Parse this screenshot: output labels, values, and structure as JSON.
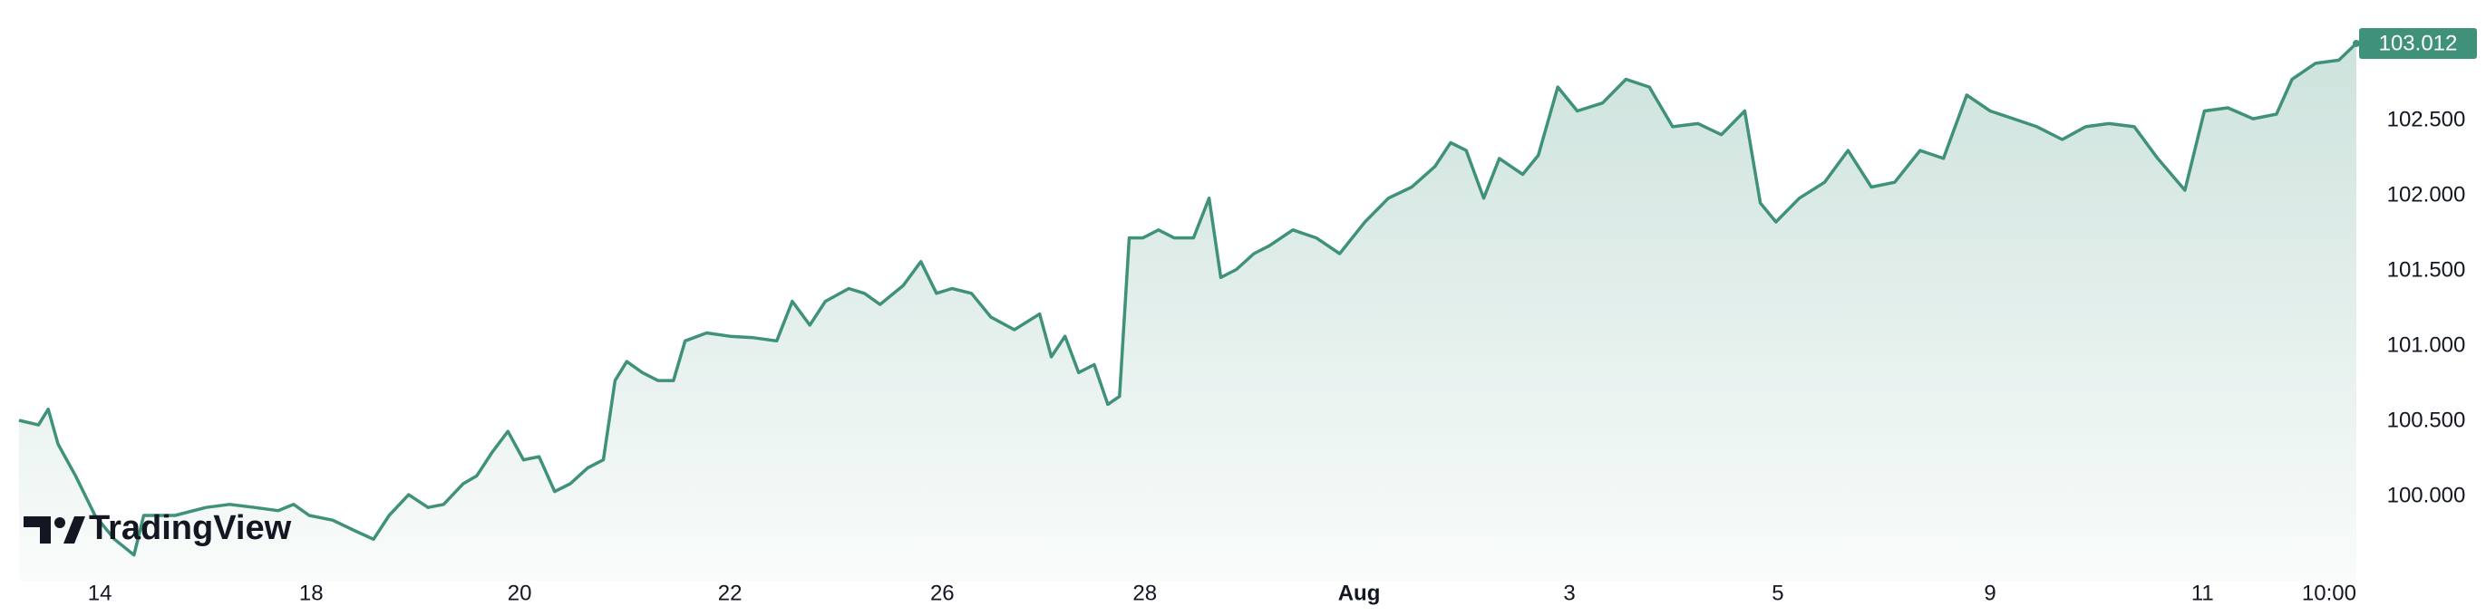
{
  "chart_data": {
    "type": "area",
    "brand": "TradingView",
    "color": "#3f917a",
    "x": [
      0.0,
      1.0,
      1.5,
      2.0,
      2.9,
      3.9,
      4.9,
      5.9,
      6.4,
      8.0,
      9.6,
      10.8,
      12.1,
      13.3,
      14.1,
      14.9,
      16.1,
      17.3,
      18.2,
      19.0,
      20.0,
      21.0,
      21.8,
      22.8,
      23.5,
      24.3,
      25.1,
      25.9,
      26.7,
      27.5,
      28.3,
      29.2,
      30.0,
      30.6,
      31.2,
      32.0,
      32.8,
      33.6,
      34.2,
      35.3,
      36.5,
      37.7,
      38.9,
      39.7,
      40.6,
      41.4,
      42.6,
      43.4,
      44.2,
      45.4,
      46.3,
      47.1,
      47.9,
      48.9,
      49.9,
      51.1,
      52.4,
      53.0,
      53.7,
      54.4,
      55.2,
      55.9,
      56.5,
      57.0,
      57.7,
      58.5,
      59.3,
      60.3,
      61.1,
      61.7,
      62.5,
      63.4,
      64.2,
      65.4,
      66.6,
      67.8,
      69.1,
      70.3,
      71.5,
      72.7,
      73.5,
      74.3,
      75.2,
      76.0,
      77.2,
      78.0,
      79.0,
      80.0,
      81.3,
      82.5,
      83.7,
      84.9,
      86.2,
      87.4,
      88.6,
      89.4,
      90.2,
      91.4,
      92.7,
      93.9,
      95.1,
      96.3,
      97.6,
      98.8,
      100.0,
      101.2,
      102.4,
      103.6,
      104.9,
      106.1,
      107.3,
      108.6,
      109.8,
      111.2,
      112.2,
      113.4,
      114.7,
      115.9,
      116.7,
      117.9,
      119.1,
      120.0
    ],
    "values": [
      100.506,
      100.475,
      100.58,
      100.348,
      100.137,
      99.873,
      99.715,
      99.61,
      99.873,
      99.873,
      99.926,
      99.947,
      99.926,
      99.905,
      99.947,
      99.873,
      99.842,
      99.768,
      99.715,
      99.873,
      100.011,
      99.926,
      99.947,
      100.084,
      100.137,
      100.295,
      100.432,
      100.243,
      100.264,
      100.032,
      100.084,
      100.19,
      100.243,
      100.77,
      100.897,
      100.823,
      100.77,
      100.77,
      101.034,
      101.087,
      101.065,
      101.055,
      101.034,
      101.297,
      101.139,
      101.297,
      101.382,
      101.35,
      101.276,
      101.403,
      101.561,
      101.35,
      101.382,
      101.35,
      101.192,
      101.108,
      101.213,
      100.928,
      101.065,
      100.823,
      100.876,
      100.612,
      100.665,
      101.719,
      101.719,
      101.772,
      101.719,
      101.719,
      101.983,
      101.456,
      101.509,
      101.614,
      101.667,
      101.772,
      101.719,
      101.614,
      101.825,
      101.983,
      102.057,
      102.194,
      102.352,
      102.3,
      101.983,
      102.247,
      102.141,
      102.268,
      102.722,
      102.563,
      102.616,
      102.774,
      102.722,
      102.458,
      102.479,
      102.405,
      102.563,
      101.951,
      101.825,
      101.983,
      102.089,
      102.3,
      102.057,
      102.089,
      102.3,
      102.247,
      102.669,
      102.563,
      102.511,
      102.458,
      102.373,
      102.458,
      102.479,
      102.458,
      102.247,
      102.036,
      102.563,
      102.584,
      102.511,
      102.542,
      102.774,
      102.88,
      102.901,
      103.012
    ],
    "xlim": [
      0,
      120
    ],
    "xticks": [
      {
        "value": 4.15,
        "label": "14"
      },
      {
        "value": 15.0,
        "label": "18"
      },
      {
        "value": 25.7,
        "label": "20"
      },
      {
        "value": 36.5,
        "label": "22"
      },
      {
        "value": 47.4,
        "label": "26"
      },
      {
        "value": 57.8,
        "label": "28"
      },
      {
        "value": 68.8,
        "label": "Aug"
      },
      {
        "value": 79.6,
        "label": "3"
      },
      {
        "value": 90.3,
        "label": "5"
      },
      {
        "value": 101.2,
        "label": "9"
      },
      {
        "value": 112.1,
        "label": "11"
      },
      {
        "value": 118.6,
        "label": "10:00"
      }
    ],
    "ylim": [
      99.56,
      103.09
    ],
    "yticks": [
      {
        "value": 100,
        "label": "100.000"
      },
      {
        "value": 100.5,
        "label": "100.500"
      },
      {
        "value": 101,
        "label": "101.000"
      },
      {
        "value": 101.5,
        "label": "101.500"
      },
      {
        "value": 102,
        "label": "102.000"
      },
      {
        "value": 102.5,
        "label": "102.500"
      }
    ]
  }
}
